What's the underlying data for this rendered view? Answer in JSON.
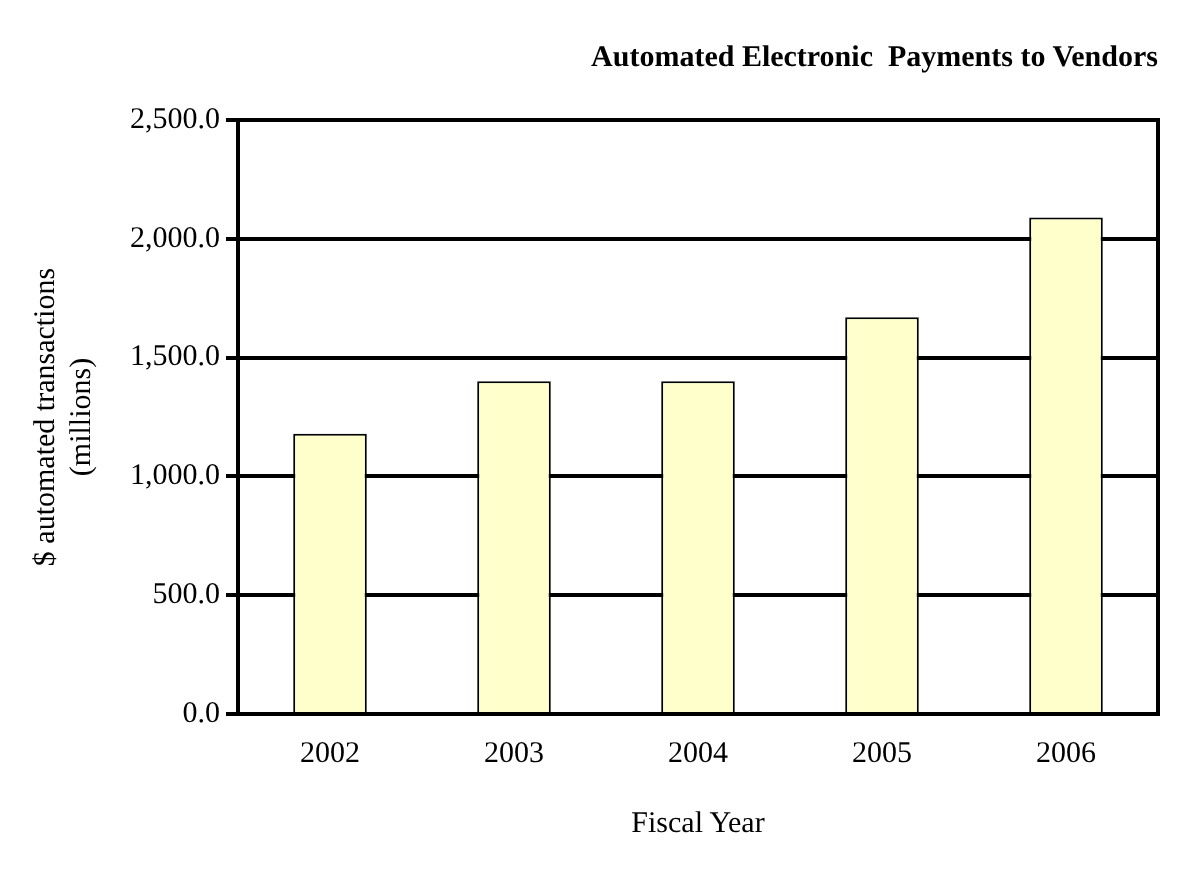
{
  "chart_data": {
    "type": "bar",
    "title": "Automated Electronic  Payments to Vendors",
    "xlabel": "Fiscal Year",
    "ylabel": "$ automated transactions (millions)",
    "categories": [
      "2002",
      "2003",
      "2004",
      "2005",
      "2006"
    ],
    "values": [
      1180,
      1400,
      1400,
      1670,
      2090
    ],
    "color": "#ffffcc",
    "ylim": [
      0,
      2500
    ],
    "yticks": [
      {
        "value": 0,
        "label": "0.0"
      },
      {
        "value": 500,
        "label": "500.0"
      },
      {
        "value": 1000,
        "label": "1,000.0"
      },
      {
        "value": 1500,
        "label": "1,500.0"
      },
      {
        "value": 2000,
        "label": "2,000.0"
      },
      {
        "value": 2500,
        "label": "2,500.0"
      }
    ],
    "grid": "y",
    "legend": false
  }
}
